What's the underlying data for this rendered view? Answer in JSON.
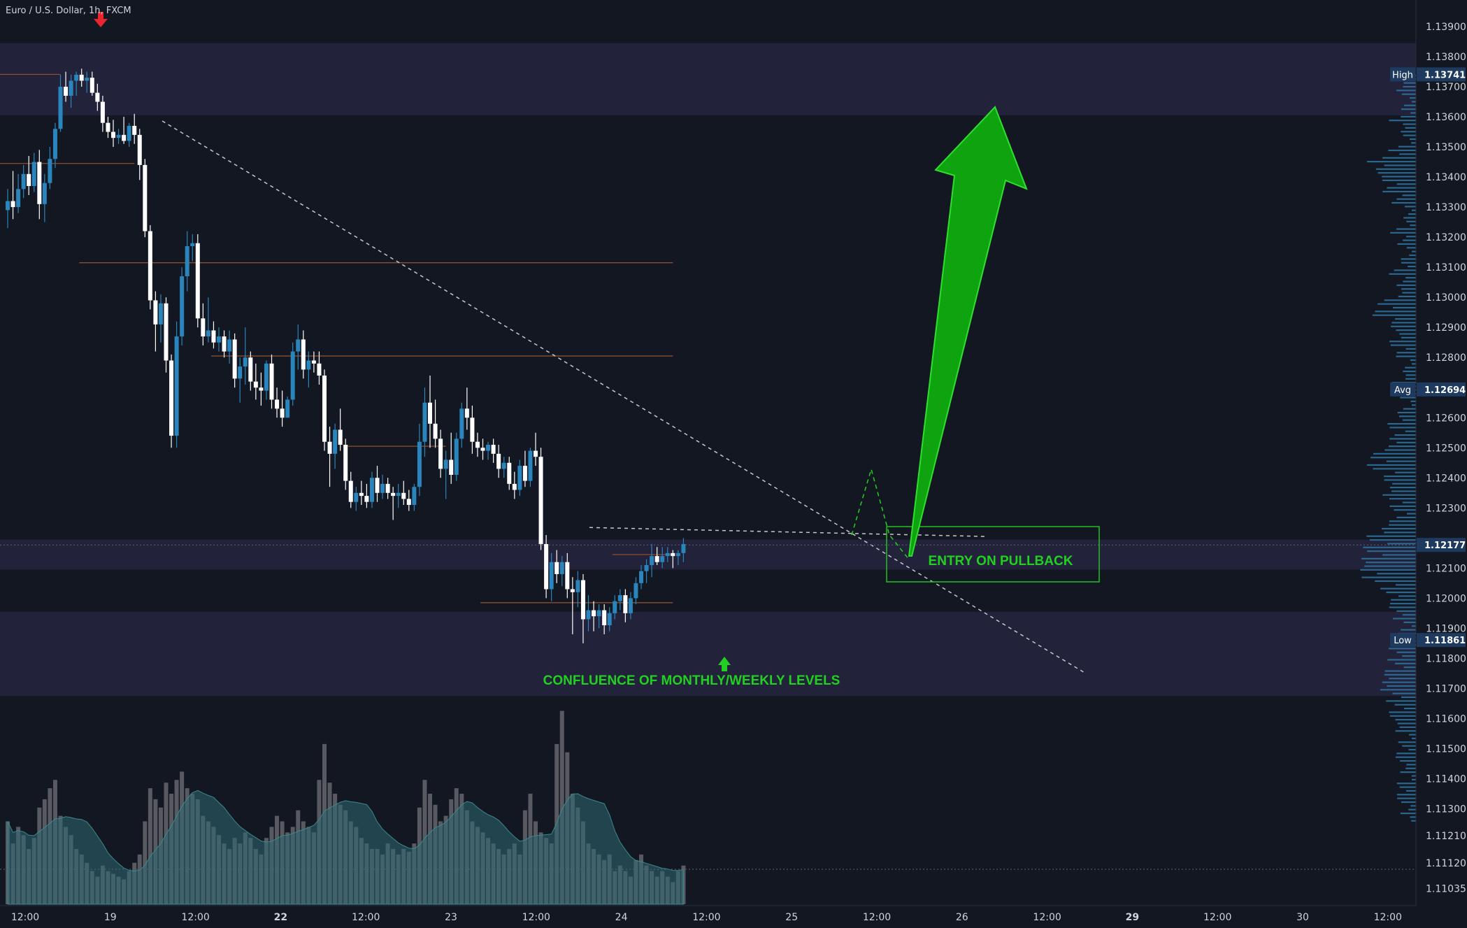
{
  "symbol": {
    "title": "Euro / U.S. Dollar, 1h, FXCM"
  },
  "colors": {
    "background": "#131722",
    "bull": "#2a85bd",
    "bear": "#ffffff",
    "zone": "#262440",
    "level_line": "#8c4f30",
    "volume": "#6a6a72",
    "volume_ma": "#2f6a72",
    "profile": "#2e6f9a",
    "annotation": "#22d022"
  },
  "chart_data": {
    "type": "candlestick",
    "ylim": [
      1.1099,
      1.1397
    ],
    "price_ticks": [
      "1.13900",
      "1.13800",
      "1.13700",
      "1.13600",
      "1.13500",
      "1.13400",
      "1.13300",
      "1.13200",
      "1.13100",
      "1.13000",
      "1.12900",
      "1.12800",
      "1.12600",
      "1.12500",
      "1.12400",
      "1.12300",
      "1.12100",
      "1.12000",
      "1.11900",
      "1.11800",
      "1.11700",
      "1.11600",
      "1.11500",
      "1.11400",
      "1.11300",
      "1.11210",
      "1.11120",
      "1.11035"
    ],
    "time_ticks": [
      {
        "label": "12:00",
        "bold": false
      },
      {
        "label": "19",
        "bold": false
      },
      {
        "label": "12:00",
        "bold": false
      },
      {
        "label": "22",
        "bold": true
      },
      {
        "label": "12:00",
        "bold": false
      },
      {
        "label": "23",
        "bold": false
      },
      {
        "label": "12:00",
        "bold": false
      },
      {
        "label": "24",
        "bold": false
      },
      {
        "label": "12:00",
        "bold": false
      },
      {
        "label": "25",
        "bold": false
      },
      {
        "label": "12:00",
        "bold": false
      },
      {
        "label": "26",
        "bold": false
      },
      {
        "label": "12:00",
        "bold": false
      },
      {
        "label": "29",
        "bold": true
      },
      {
        "label": "12:00",
        "bold": false
      },
      {
        "label": "30",
        "bold": false
      },
      {
        "label": "12:00",
        "bold": false
      }
    ],
    "price_labels": [
      {
        "name": "High",
        "value": "1.13741"
      },
      {
        "name": "Avg",
        "value": "1.12694"
      },
      {
        "name": "Low",
        "value": "1.11861"
      },
      {
        "name": "",
        "value": "1.12177"
      }
    ],
    "zones": [
      {
        "from": 1.13605,
        "to": 1.13845
      },
      {
        "from": 1.12095,
        "to": 1.12195
      },
      {
        "from": 1.11675,
        "to": 1.11955
      }
    ],
    "levels": [
      {
        "price": 1.13741,
        "from": 0,
        "to": 10
      },
      {
        "price": 1.13445,
        "from": 0,
        "to": 24
      },
      {
        "price": 1.13115,
        "from": 15,
        "to": 126
      },
      {
        "price": 1.12805,
        "from": 40,
        "to": 126
      },
      {
        "price": 1.12505,
        "from": 65,
        "to": 83
      },
      {
        "price": 1.12145,
        "from": 116,
        "to": 126
      },
      {
        "price": 1.11985,
        "from": 91,
        "to": 126
      }
    ],
    "candles": [
      [
        1.1329,
        1.1336,
        1.1323,
        1.1332
      ],
      [
        1.1332,
        1.1342,
        1.1326,
        1.133
      ],
      [
        1.133,
        1.1341,
        1.1328,
        1.1336
      ],
      [
        1.1336,
        1.1344,
        1.1333,
        1.1341
      ],
      [
        1.1341,
        1.1347,
        1.1334,
        1.1337
      ],
      [
        1.1337,
        1.1348,
        1.1335,
        1.1345
      ],
      [
        1.1345,
        1.1349,
        1.1326,
        1.1331
      ],
      [
        1.1331,
        1.1341,
        1.1325,
        1.1338
      ],
      [
        1.1338,
        1.135,
        1.1336,
        1.1346
      ],
      [
        1.1346,
        1.1358,
        1.1343,
        1.1356
      ],
      [
        1.1356,
        1.1374,
        1.1355,
        1.137
      ],
      [
        1.137,
        1.1375,
        1.1365,
        1.1367
      ],
      [
        1.1367,
        1.1374,
        1.1363,
        1.1372
      ],
      [
        1.1372,
        1.1375,
        1.1367,
        1.1374
      ],
      [
        1.1374,
        1.1376,
        1.137,
        1.1372
      ],
      [
        1.1372,
        1.1375,
        1.1368,
        1.1373
      ],
      [
        1.1373,
        1.1375,
        1.1367,
        1.1368
      ],
      [
        1.1368,
        1.1371,
        1.1362,
        1.1365
      ],
      [
        1.1365,
        1.1367,
        1.1355,
        1.1358
      ],
      [
        1.1358,
        1.136,
        1.1353,
        1.1355
      ],
      [
        1.1355,
        1.1359,
        1.135,
        1.1353
      ],
      [
        1.1353,
        1.1356,
        1.1351,
        1.1354
      ],
      [
        1.1354,
        1.136,
        1.1351,
        1.1352
      ],
      [
        1.1352,
        1.1358,
        1.135,
        1.1357
      ],
      [
        1.1357,
        1.1361,
        1.1351,
        1.1354
      ],
      [
        1.1354,
        1.1356,
        1.1339,
        1.1344
      ],
      [
        1.1344,
        1.1346,
        1.132,
        1.1322
      ],
      [
        1.1322,
        1.1324,
        1.1296,
        1.1299
      ],
      [
        1.1299,
        1.1302,
        1.1282,
        1.1291
      ],
      [
        1.1291,
        1.1301,
        1.1285,
        1.1298
      ],
      [
        1.1298,
        1.13,
        1.1275,
        1.1279
      ],
      [
        1.1279,
        1.1281,
        1.125,
        1.1254
      ],
      [
        1.1254,
        1.1292,
        1.125,
        1.1287
      ],
      [
        1.1287,
        1.131,
        1.1284,
        1.1307
      ],
      [
        1.1307,
        1.1322,
        1.1302,
        1.1317
      ],
      [
        1.1317,
        1.1321,
        1.1312,
        1.1318
      ],
      [
        1.1318,
        1.1321,
        1.129,
        1.1293
      ],
      [
        1.1293,
        1.1298,
        1.1284,
        1.1287
      ],
      [
        1.1287,
        1.13,
        1.1285,
        1.1289
      ],
      [
        1.1289,
        1.1292,
        1.1283,
        1.1285
      ],
      [
        1.1285,
        1.129,
        1.1282,
        1.1287
      ],
      [
        1.1287,
        1.1289,
        1.128,
        1.1282
      ],
      [
        1.1282,
        1.1289,
        1.1278,
        1.1286
      ],
      [
        1.1286,
        1.1288,
        1.127,
        1.1273
      ],
      [
        1.1273,
        1.128,
        1.1265,
        1.1277
      ],
      [
        1.1277,
        1.129,
        1.1271,
        1.128
      ],
      [
        1.128,
        1.1282,
        1.1269,
        1.1272
      ],
      [
        1.1272,
        1.1278,
        1.1266,
        1.127
      ],
      [
        1.127,
        1.1275,
        1.1264,
        1.1269
      ],
      [
        1.1269,
        1.1279,
        1.1266,
        1.1278
      ],
      [
        1.1278,
        1.1281,
        1.1263,
        1.1266
      ],
      [
        1.1266,
        1.127,
        1.126,
        1.1263
      ],
      [
        1.1263,
        1.1269,
        1.1257,
        1.126
      ],
      [
        1.126,
        1.1267,
        1.126,
        1.1266
      ],
      [
        1.1266,
        1.1285,
        1.1264,
        1.1282
      ],
      [
        1.1282,
        1.1291,
        1.1276,
        1.1286
      ],
      [
        1.1286,
        1.1289,
        1.1273,
        1.1276
      ],
      [
        1.1276,
        1.1282,
        1.127,
        1.1279
      ],
      [
        1.1279,
        1.1282,
        1.1275,
        1.1278
      ],
      [
        1.1278,
        1.1282,
        1.1271,
        1.1274
      ],
      [
        1.1274,
        1.1276,
        1.1249,
        1.1252
      ],
      [
        1.1252,
        1.1257,
        1.1237,
        1.1248
      ],
      [
        1.1248,
        1.1258,
        1.1243,
        1.1256
      ],
      [
        1.1256,
        1.1263,
        1.1249,
        1.1251
      ],
      [
        1.1251,
        1.1253,
        1.1236,
        1.1239
      ],
      [
        1.1239,
        1.1242,
        1.123,
        1.1232
      ],
      [
        1.1232,
        1.1237,
        1.1229,
        1.1235
      ],
      [
        1.1235,
        1.1239,
        1.1231,
        1.1234
      ],
      [
        1.1234,
        1.1238,
        1.123,
        1.1232
      ],
      [
        1.1232,
        1.1242,
        1.123,
        1.124
      ],
      [
        1.124,
        1.1244,
        1.1232,
        1.1235
      ],
      [
        1.1235,
        1.1241,
        1.1233,
        1.1238
      ],
      [
        1.1238,
        1.124,
        1.1233,
        1.1235
      ],
      [
        1.1235,
        1.1237,
        1.1226,
        1.1234
      ],
      [
        1.1234,
        1.1238,
        1.123,
        1.1235
      ],
      [
        1.1235,
        1.1239,
        1.1231,
        1.1233
      ],
      [
        1.1233,
        1.1236,
        1.1229,
        1.1231
      ],
      [
        1.1231,
        1.1238,
        1.1229,
        1.1237
      ],
      [
        1.1237,
        1.1258,
        1.1234,
        1.1252
      ],
      [
        1.1252,
        1.127,
        1.1247,
        1.1265
      ],
      [
        1.1265,
        1.1274,
        1.125,
        1.1258
      ],
      [
        1.1258,
        1.1266,
        1.125,
        1.1253
      ],
      [
        1.1253,
        1.1256,
        1.124,
        1.1243
      ],
      [
        1.1243,
        1.1249,
        1.1233,
        1.1246
      ],
      [
        1.1246,
        1.1255,
        1.1238,
        1.1241
      ],
      [
        1.1241,
        1.1255,
        1.1239,
        1.1253
      ],
      [
        1.1253,
        1.1265,
        1.125,
        1.1263
      ],
      [
        1.1263,
        1.127,
        1.1256,
        1.126
      ],
      [
        1.126,
        1.1264,
        1.1248,
        1.1252
      ],
      [
        1.1252,
        1.1255,
        1.1247,
        1.125
      ],
      [
        1.125,
        1.1253,
        1.1246,
        1.1249
      ],
      [
        1.1249,
        1.1252,
        1.1246,
        1.1251
      ],
      [
        1.1251,
        1.1253,
        1.1245,
        1.1248
      ],
      [
        1.1248,
        1.1251,
        1.124,
        1.1243
      ],
      [
        1.1243,
        1.1247,
        1.124,
        1.1245
      ],
      [
        1.1245,
        1.1247,
        1.1236,
        1.1238
      ],
      [
        1.1238,
        1.1242,
        1.1233,
        1.1236
      ],
      [
        1.1236,
        1.1246,
        1.1234,
        1.1244
      ],
      [
        1.1244,
        1.1249,
        1.1237,
        1.1239
      ],
      [
        1.1239,
        1.125,
        1.1237,
        1.1249
      ],
      [
        1.1249,
        1.1255,
        1.1244,
        1.1247
      ],
      [
        1.1247,
        1.125,
        1.1216,
        1.1218
      ],
      [
        1.1218,
        1.1221,
        1.12,
        1.1203
      ],
      [
        1.1203,
        1.1215,
        1.1199,
        1.1212
      ],
      [
        1.1212,
        1.1216,
        1.1205,
        1.1208
      ],
      [
        1.1208,
        1.1214,
        1.1204,
        1.1212
      ],
      [
        1.1212,
        1.1215,
        1.12,
        1.1203
      ],
      [
        1.1203,
        1.1207,
        1.1188,
        1.1202
      ],
      [
        1.1202,
        1.1209,
        1.1197,
        1.1206
      ],
      [
        1.1206,
        1.1208,
        1.1185,
        1.1193
      ],
      [
        1.1193,
        1.1201,
        1.1189,
        1.1196
      ],
      [
        1.1196,
        1.1199,
        1.1189,
        1.1194
      ],
      [
        1.1194,
        1.1198,
        1.119,
        1.1196
      ],
      [
        1.1196,
        1.1198,
        1.1188,
        1.1191
      ],
      [
        1.1191,
        1.1197,
        1.1189,
        1.1195
      ],
      [
        1.1195,
        1.1201,
        1.1193,
        1.1199
      ],
      [
        1.1199,
        1.1203,
        1.1196,
        1.1201
      ],
      [
        1.1201,
        1.1203,
        1.1192,
        1.1195
      ],
      [
        1.1195,
        1.1202,
        1.1193,
        1.12
      ],
      [
        1.12,
        1.1207,
        1.1198,
        1.1205
      ],
      [
        1.1205,
        1.1211,
        1.1203,
        1.1209
      ],
      [
        1.1209,
        1.1213,
        1.1205,
        1.1211
      ],
      [
        1.1211,
        1.1218,
        1.1207,
        1.1214
      ],
      [
        1.1214,
        1.1217,
        1.1211,
        1.1212
      ],
      [
        1.1212,
        1.1217,
        1.121,
        1.1214
      ],
      [
        1.1214,
        1.1217,
        1.1212,
        1.1215
      ],
      [
        1.1215,
        1.1216,
        1.121,
        1.1214
      ],
      [
        1.1214,
        1.1216,
        1.1211,
        1.1215
      ],
      [
        1.1215,
        1.122,
        1.1212,
        1.1218
      ]
    ],
    "volume": [
      30,
      22,
      28,
      25,
      20,
      24,
      35,
      38,
      42,
      45,
      32,
      28,
      25,
      20,
      18,
      15,
      12,
      10,
      14,
      12,
      11,
      10,
      9,
      12,
      15,
      18,
      30,
      42,
      38,
      35,
      44,
      40,
      45,
      48,
      42,
      40,
      38,
      32,
      30,
      28,
      25,
      22,
      20,
      24,
      22,
      26,
      24,
      20,
      18,
      24,
      28,
      32,
      30,
      26,
      28,
      34,
      30,
      28,
      26,
      45,
      58,
      44,
      40,
      36,
      34,
      30,
      28,
      24,
      22,
      20,
      20,
      18,
      22,
      20,
      18,
      20,
      19,
      22,
      35,
      45,
      40,
      36,
      30,
      32,
      38,
      42,
      40,
      34,
      30,
      28,
      26,
      24,
      22,
      20,
      18,
      20,
      22,
      18,
      34,
      40,
      30,
      26,
      24,
      22,
      58,
      70,
      55,
      40,
      35,
      30,
      22,
      20,
      18,
      16,
      18,
      12,
      14,
      12,
      10,
      16,
      18,
      14,
      12,
      10,
      12,
      10,
      8,
      12,
      14
    ]
  },
  "annotations": {
    "confluence": "CONFLUENCE OF MONTHLY/WEEKLY LEVELS",
    "entry": "ENTRY ON PULLBACK"
  }
}
